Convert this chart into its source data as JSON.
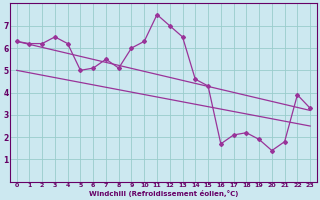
{
  "xlabel": "Windchill (Refroidissement éolien,°C)",
  "bg_color": "#cce8f0",
  "line_color": "#993399",
  "grid_color": "#99cccc",
  "hours": [
    0,
    1,
    2,
    3,
    4,
    5,
    6,
    7,
    8,
    9,
    10,
    11,
    12,
    13,
    14,
    15,
    16,
    17,
    18,
    19,
    20,
    21,
    22,
    23
  ],
  "windchill": [
    6.3,
    6.2,
    6.2,
    6.5,
    6.2,
    5.0,
    5.1,
    5.5,
    5.1,
    6.0,
    6.3,
    7.5,
    7.0,
    6.5,
    4.6,
    4.3,
    1.7,
    2.1,
    2.2,
    1.9,
    1.4,
    1.8,
    3.9,
    3.3
  ],
  "trend1_start": 6.3,
  "trend1_end": 3.2,
  "trend2_start": 5.0,
  "trend2_end": 2.5,
  "xlim": [
    -0.5,
    23.5
  ],
  "ylim": [
    0,
    8
  ],
  "xticks": [
    0,
    1,
    2,
    3,
    4,
    5,
    6,
    7,
    8,
    9,
    10,
    11,
    12,
    13,
    14,
    15,
    16,
    17,
    18,
    19,
    20,
    21,
    22,
    23
  ],
  "yticks": [
    1,
    2,
    3,
    4,
    5,
    6,
    7
  ],
  "tick_color": "#660066",
  "spine_color": "#660066"
}
